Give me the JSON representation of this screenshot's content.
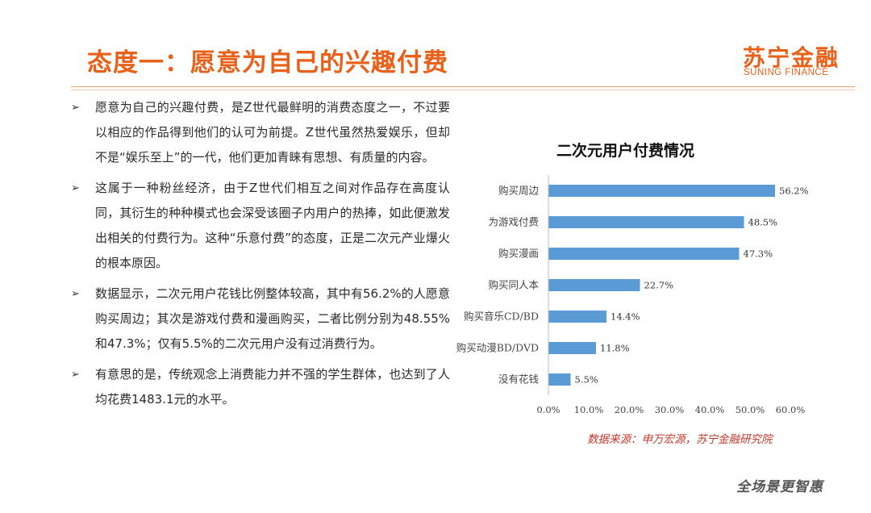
{
  "header": {
    "title": "态度一：愿意为自己的兴趣付费",
    "logo_cn": "苏宁金融",
    "logo_en": "SUNING FINANCE"
  },
  "bullets": [
    "愿意为自己的兴趣付费，是Z世代最鲜明的消费态度之一，不过要以相应的作品得到他们的认可为前提。Z世代虽然热爱娱乐，但却不是“娱乐至上”的一代，他们更加青睐有思想、有质量的内容。",
    "这属于一种粉丝经济，由于Z世代们相互之间对作品存在高度认同，其衍生的种种模式也会深受该圈子内用户的热捧，如此便激发出相关的付费行为。这种“乐意付费”的态度，正是二次元产业爆火的根本原因。",
    "数据显示，二次元用户花钱比例整体较高，其中有56.2%的人愿意购买周边；其次是游戏付费和漫画购买，二者比例分别为48.55%和47.3%；仅有5.5%的二次元用户没有过消费行为。",
    "有意思的是，传统观念上消费能力并不强的学生群体，也达到了人均花费1483.1元的水平。"
  ],
  "bullet_glyph": "➢",
  "chart_data": {
    "type": "bar",
    "orientation": "horizontal",
    "title": "二次元用户付费情况",
    "categories": [
      "购买周边",
      "为游戏付费",
      "购买漫画",
      "购买同人本",
      "购买音乐CD/BD",
      "购买动漫BD/DVD",
      "没有花钱"
    ],
    "values": [
      56.2,
      48.5,
      47.3,
      22.7,
      14.4,
      11.8,
      5.5
    ],
    "value_labels": [
      "56.2%",
      "48.5%",
      "47.3%",
      "22.7%",
      "14.4%",
      "11.8%",
      "5.5%"
    ],
    "xticks": [
      0,
      10,
      20,
      30,
      40,
      50,
      60
    ],
    "xtick_labels": [
      "0.0%",
      "10.0%",
      "20.0%",
      "30.0%",
      "40.0%",
      "50.0%",
      "60.0%"
    ],
    "xlim": [
      0,
      60
    ],
    "grid": false,
    "legend": "none",
    "bar_color": "#5b9bd5"
  },
  "footer": {
    "source": "数据来源：申万宏源，苏宁金融研究院",
    "slogan": "全场景更智惠"
  }
}
